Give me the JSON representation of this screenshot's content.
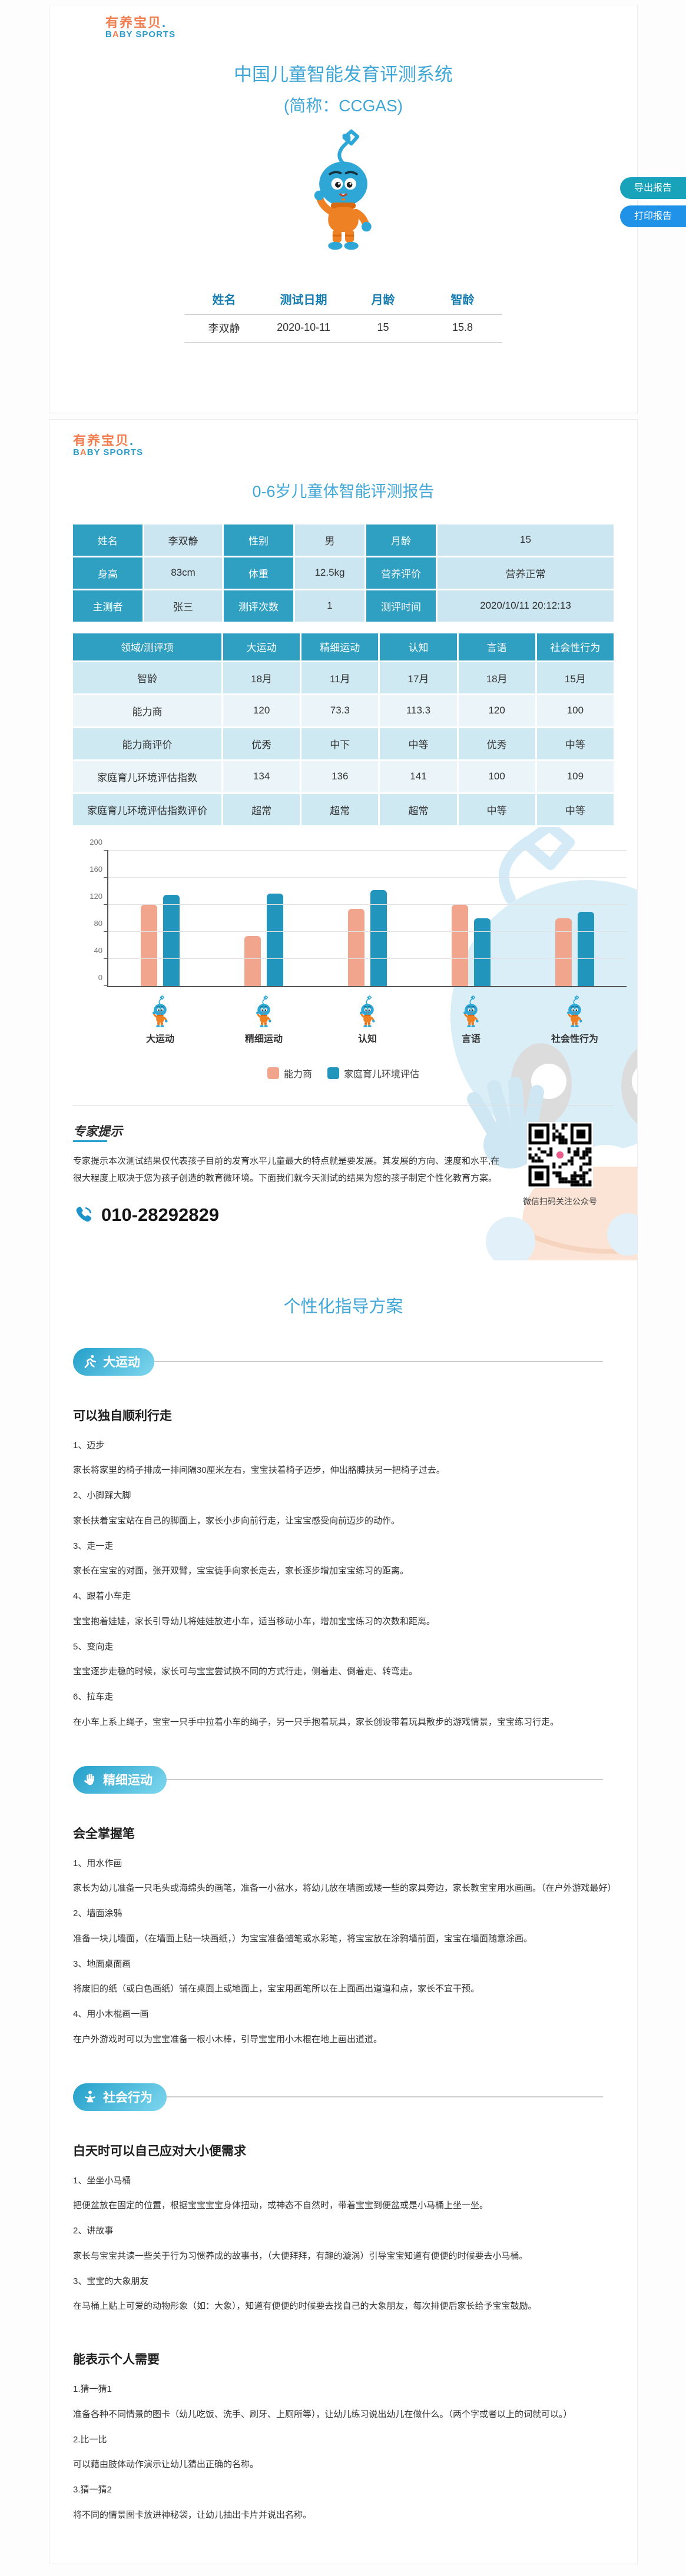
{
  "brand": {
    "cn": "有养宝贝",
    "dot": ".",
    "en_b": "B",
    "en_a": "A",
    "en_rest": "BY SPORTS"
  },
  "header": {
    "title": "中国儿童智能发育评测系统",
    "subtitle": "(简称：CCGAS)"
  },
  "actions": {
    "export_label": "导出报告",
    "print_label": "打印报告"
  },
  "summary_table": {
    "headers": [
      "姓名",
      "测试日期",
      "月龄",
      "智龄"
    ],
    "row": [
      "李双静",
      "2020-10-11",
      "15",
      "15.8"
    ]
  },
  "report": {
    "title": "0-6岁儿童体智能评测报告",
    "info_rows": [
      [
        {
          "label": "姓名",
          "value": "李双静"
        },
        {
          "label": "性别",
          "value": "男"
        },
        {
          "label": "月龄",
          "value": "15"
        }
      ],
      [
        {
          "label": "身高",
          "value": "83cm"
        },
        {
          "label": "体重",
          "value": "12.5kg"
        },
        {
          "label": "营养评价",
          "value": "营养正常"
        }
      ],
      [
        {
          "label": "主测者",
          "value": "张三"
        },
        {
          "label": "测评次数",
          "value": "1"
        },
        {
          "label": "测评时间",
          "value": "2020/10/11 20:12:13"
        }
      ]
    ],
    "result_table": {
      "headers": [
        "领域/测评项",
        "大运动",
        "精细运动",
        "认知",
        "言语",
        "社会性行为"
      ],
      "rows": [
        [
          "智龄",
          "18月",
          "11月",
          "17月",
          "18月",
          "15月"
        ],
        [
          "能力商",
          "120",
          "73.3",
          "113.3",
          "120",
          "100"
        ],
        [
          "能力商评价",
          "优秀",
          "中下",
          "中等",
          "优秀",
          "中等"
        ],
        [
          "家庭育儿环境评估指数",
          "134",
          "136",
          "141",
          "100",
          "109"
        ],
        [
          "家庭育儿环境评估指数评价",
          "超常",
          "超常",
          "超常",
          "中等",
          "中等"
        ]
      ]
    }
  },
  "chart_data": {
    "type": "bar",
    "categories": [
      "大运动",
      "精细运动",
      "认知",
      "言语",
      "社会性行为"
    ],
    "series": [
      {
        "name": "能力商",
        "color": "#f2a58d",
        "values": [
          120,
          73.3,
          113.3,
          120,
          100
        ]
      },
      {
        "name": "家庭育儿环境评估",
        "color": "#2195bc",
        "values": [
          134,
          136,
          141,
          100,
          109
        ]
      }
    ],
    "ylim": [
      0,
      200
    ],
    "yticks": [
      0,
      40,
      80,
      120,
      160,
      200
    ],
    "grid": true,
    "legend_position": "bottom"
  },
  "expert": {
    "title": "专家提示",
    "body": "专家提示本次测试结果仅代表孩子目前的发育水平儿童最大的特点就是要发展。其发展的方向、速度和水平,在很大程度上取决于您为孩子创造的教育微环境。下面我们就今天测试的结果为您的孩子制定个性化教育方案。",
    "phone": "010-28292829",
    "qr_caption": "微信扫码关注公众号"
  },
  "plan": {
    "title": "个性化指导方案",
    "sections": [
      {
        "label": "大运动",
        "icon": "runner-icon",
        "blocks": [
          {
            "heading": "可以独自顺利行走",
            "items": [
              {
                "title": "1、迈步",
                "desc": "家长将家里的椅子排成一排间隔30厘米左右，宝宝扶着椅子迈步，伸出胳膊扶另一把椅子过去。"
              },
              {
                "title": "2、小脚踩大脚",
                "desc": "家长扶着宝宝站在自己的脚面上，家长小步向前行走，让宝宝感受向前迈步的动作。"
              },
              {
                "title": "3、走一走",
                "desc": "家长在宝宝的对面，张开双臂，宝宝徒手向家长走去，家长逐步增加宝宝练习的距离。"
              },
              {
                "title": "4、跟着小车走",
                "desc": "宝宝抱着娃娃，家长引导幼儿将娃娃放进小车，适当移动小车，增加宝宝练习的次数和距离。"
              },
              {
                "title": "5、变向走",
                "desc": "宝宝逐步走稳的时候，家长可与宝宝尝试换不同的方式行走，侧着走、倒着走、转弯走。"
              },
              {
                "title": "6、拉车走",
                "desc": "在小车上系上绳子，宝宝一只手中拉着小车的绳子，另一只手抱着玩具，家长创设带着玩具散步的游戏情景，宝宝练习行走。"
              }
            ]
          }
        ]
      },
      {
        "label": "精细运动",
        "icon": "hand-icon",
        "blocks": [
          {
            "heading": "会全掌握笔",
            "items": [
              {
                "title": "1、用水作画",
                "desc": "家长为幼儿准备一只毛头或海绵头的画笔，准备一小盆水，将幼儿放在墙面或矮一些的家具旁边，家长教宝宝用水画画。（在户外游戏最好）"
              },
              {
                "title": "2、墙面涂鸦",
                "desc": "准备一块儿墙面，（在墙面上贴一块画纸，）为宝宝准备蜡笔或水彩笔，将宝宝放在涂鸦墙前面，宝宝在墙面随意涂画。"
              },
              {
                "title": "3、地面桌面画",
                "desc": "将废旧的纸（或白色画纸）铺在桌面上或地面上，宝宝用画笔所以在上面画出道道和点，家长不宜干预。"
              },
              {
                "title": "4、用小木棍画一画",
                "desc": "在户外游戏时可以为宝宝准备一根小木棒，引导宝宝用小木棍在地上画出道道。"
              }
            ]
          }
        ]
      },
      {
        "label": "社会行为",
        "icon": "person-icon",
        "blocks": [
          {
            "heading": "白天时可以自己应对大小便需求",
            "items": [
              {
                "title": "1、坐坐小马桶",
                "desc": "把便盆放在固定的位置，根据宝宝宝宝身体扭动，或神态不自然时，带着宝宝到便盆或是小马桶上坐一坐。"
              },
              {
                "title": "2、讲故事",
                "desc": "家长与宝宝共读一些关于行为习惯养成的故事书，（大便拜拜，有趣的漩涡）引导宝宝知道有便便的时候要去小马桶。"
              },
              {
                "title": "3、宝宝的大象朋友",
                "desc": "在马桶上贴上可爱的动物形象（如：大象），知道有便便的时候要去找自己的大象朋友，每次排便后家长给予宝宝鼓励。"
              }
            ]
          },
          {
            "heading": "能表示个人需要",
            "items": [
              {
                "title": "1.猜一猜1",
                "desc": "准备各种不同情景的图卡（幼儿吃饭、洗手、刷牙、上厕所等），让幼儿练习说出幼儿在做什么。（两个字或者以上的词就可以。）"
              },
              {
                "title": "2.比一比",
                "desc": "可以藉由肢体动作演示让幼儿猜出正确的名称。"
              },
              {
                "title": "3.猜一猜2",
                "desc": "将不同的情景图卡放进神秘袋，让幼儿抽出卡片并说出名称。"
              }
            ]
          }
        ]
      }
    ]
  }
}
